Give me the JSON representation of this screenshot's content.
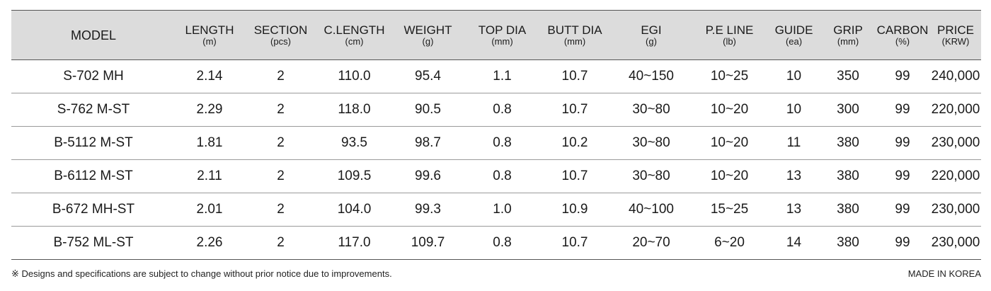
{
  "table": {
    "headers": [
      {
        "label": "MODEL",
        "unit": ""
      },
      {
        "label": "LENGTH",
        "unit": "(m)"
      },
      {
        "label": "SECTION",
        "unit": "(pcs)"
      },
      {
        "label": "C.LENGTH",
        "unit": "(cm)"
      },
      {
        "label": "WEIGHT",
        "unit": "(g)"
      },
      {
        "label": "TOP DIA",
        "unit": "(mm)"
      },
      {
        "label": "BUTT DIA",
        "unit": "(mm)"
      },
      {
        "label": "EGI",
        "unit": "(g)"
      },
      {
        "label": "P.E LINE",
        "unit": "(lb)"
      },
      {
        "label": "GUIDE",
        "unit": "(ea)"
      },
      {
        "label": "GRIP",
        "unit": "(mm)"
      },
      {
        "label": "CARBON",
        "unit": "(%)"
      },
      {
        "label": "PRICE",
        "unit": "(KRW)"
      }
    ],
    "rows": [
      [
        "S-702 MH",
        "2.14",
        "2",
        "110.0",
        "95.4",
        "1.1",
        "10.7",
        "40~150",
        "10~25",
        "10",
        "350",
        "99",
        "240,000"
      ],
      [
        "S-762 M-ST",
        "2.29",
        "2",
        "118.0",
        "90.5",
        "0.8",
        "10.7",
        "30~80",
        "10~20",
        "10",
        "300",
        "99",
        "220,000"
      ],
      [
        "B-5112 M-ST",
        "1.81",
        "2",
        "93.5",
        "98.7",
        "0.8",
        "10.2",
        "30~80",
        "10~20",
        "11",
        "380",
        "99",
        "230,000"
      ],
      [
        "B-6112 M-ST",
        "2.11",
        "2",
        "109.5",
        "99.6",
        "0.8",
        "10.7",
        "30~80",
        "10~20",
        "13",
        "380",
        "99",
        "220,000"
      ],
      [
        "B-672 MH-ST",
        "2.01",
        "2",
        "104.0",
        "99.3",
        "1.0",
        "10.9",
        "40~100",
        "15~25",
        "13",
        "380",
        "99",
        "230,000"
      ],
      [
        "B-752 ML-ST",
        "2.26",
        "2",
        "117.0",
        "109.7",
        "0.8",
        "10.7",
        "20~70",
        "6~20",
        "14",
        "380",
        "99",
        "230,000"
      ]
    ]
  },
  "footer": {
    "note": "※ Designs and specifications are subject to change without prior notice due to improvements.",
    "made_in": "MADE IN KOREA"
  },
  "colors": {
    "header_bg": "#dcdcdc",
    "rule": "#9a9a9a"
  }
}
